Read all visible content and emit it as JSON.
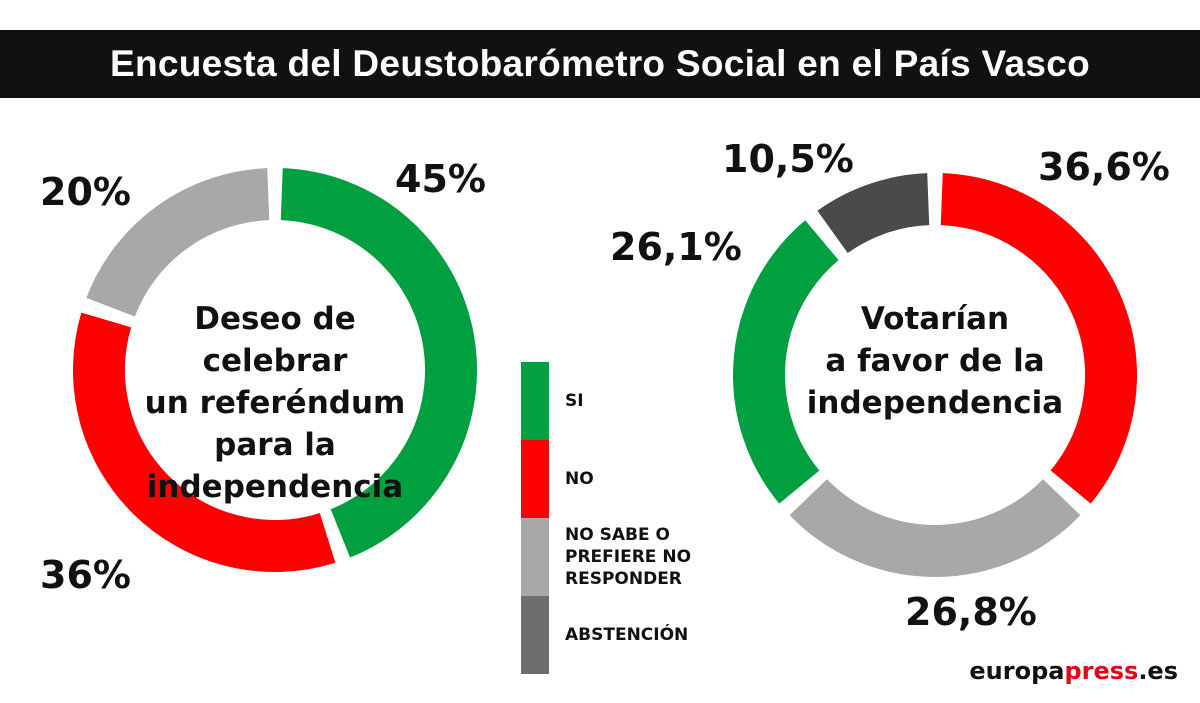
{
  "title": "Encuesta del Deustobarómetro Social en el País Vasco",
  "chart_data": [
    {
      "type": "pie",
      "variant": "donut",
      "title": "Deseo de celebrar un referéndum para la independencia",
      "title_lines": [
        "Deseo de celebrar",
        "un referéndum",
        "para la",
        "independencia"
      ],
      "series": [
        {
          "name": "SI",
          "value": 45,
          "label": "45%",
          "color": "#00a040"
        },
        {
          "name": "NO",
          "value": 36,
          "label": "36%",
          "color": "#ff0000"
        },
        {
          "name": "NO SABE O PREFIERE NO RESPONDER",
          "value": 20,
          "label": "20%",
          "color": "#a8a8a8"
        }
      ]
    },
    {
      "type": "pie",
      "variant": "donut",
      "title": "Votarían a favor de la independencia",
      "title_lines": [
        "Votarían",
        "a favor de la",
        "independencia"
      ],
      "series": [
        {
          "name": "NO",
          "value": 36.6,
          "label": "36,6%",
          "color": "#ff0000"
        },
        {
          "name": "NO SABE O PREFIERE NO RESPONDER",
          "value": 26.8,
          "label": "26,8%",
          "color": "#a8a8a8"
        },
        {
          "name": "SI",
          "value": 26.1,
          "label": "26,1%",
          "color": "#00a040"
        },
        {
          "name": "ABSTENCIÓN",
          "value": 10.5,
          "label": "10,5%",
          "color": "#4a4a4a"
        }
      ]
    }
  ],
  "legend": [
    {
      "label": "SI",
      "color": "#00a040"
    },
    {
      "label": "NO",
      "color": "#ff0000"
    },
    {
      "label": "NO SABE O\nPREFIERE NO\nRESPONDER",
      "color": "#a8a8a8"
    },
    {
      "label": "ABSTENCIÓN",
      "color": "#6e6e6e"
    }
  ],
  "brand": {
    "part1": "europa",
    "part2": "press",
    "part3": ".es"
  }
}
